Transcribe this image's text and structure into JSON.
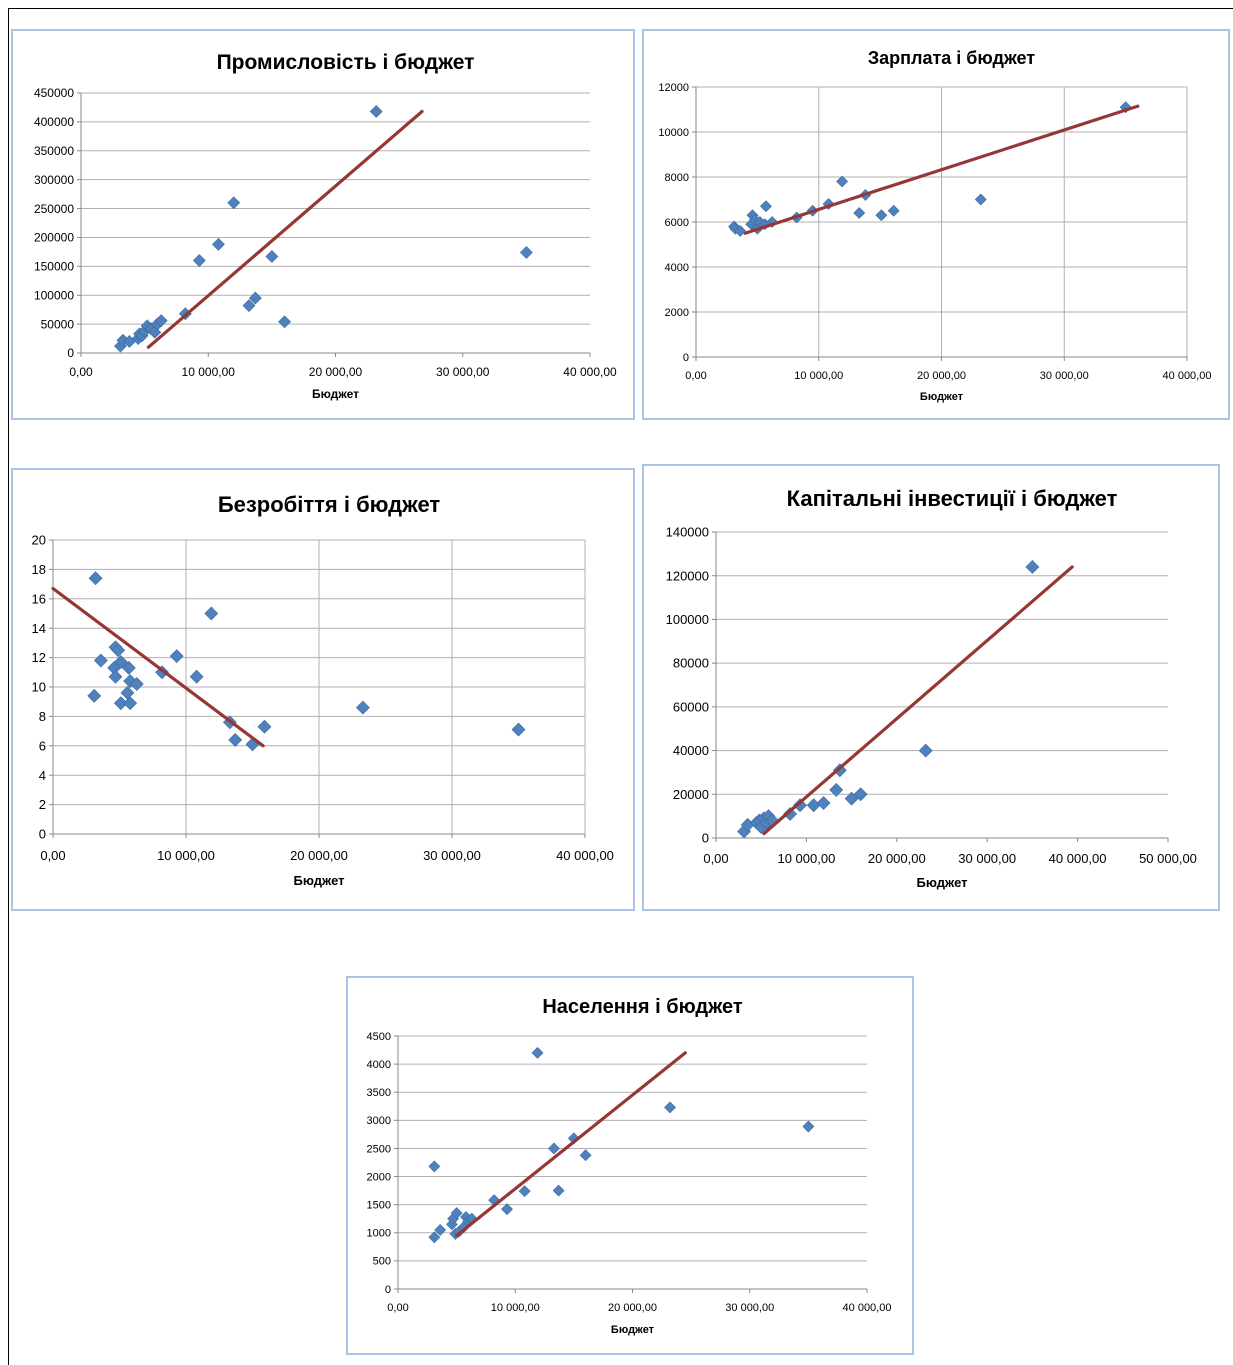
{
  "colors": {
    "point": "#4f81bd",
    "trend": "#953735",
    "grid": "#b0b0b0",
    "border": "#a9c4e6"
  },
  "chart_data": [
    {
      "type": "scatter",
      "title": "Промисловість і бюджет",
      "xlabel": "Бюджет",
      "ylabel": "",
      "xlim": [
        0,
        40000
      ],
      "ylim": [
        0,
        450000
      ],
      "x_ticks": [
        0,
        10000,
        20000,
        30000,
        40000
      ],
      "x_tick_labels": [
        "0,00",
        "10 000,00",
        "20 000,00",
        "30 000,00",
        "40 000,00"
      ],
      "y_ticks": [
        0,
        50000,
        100000,
        150000,
        200000,
        250000,
        300000,
        350000,
        400000,
        450000
      ],
      "y_tick_labels": [
        "0",
        "50000",
        "100000",
        "150000",
        "200000",
        "250000",
        "300000",
        "350000",
        "400000",
        "450000"
      ],
      "grid": {
        "horizontal": true,
        "vertical": false
      },
      "legend": "none",
      "points": [
        [
          3100,
          12000
        ],
        [
          3300,
          22000
        ],
        [
          3800,
          20000
        ],
        [
          4500,
          25000
        ],
        [
          4600,
          33000
        ],
        [
          4800,
          30000
        ],
        [
          5000,
          38000
        ],
        [
          5200,
          47000
        ],
        [
          5500,
          42000
        ],
        [
          5800,
          36000
        ],
        [
          6000,
          50000
        ],
        [
          6300,
          56000
        ],
        [
          8200,
          68000
        ],
        [
          9300,
          160000
        ],
        [
          10800,
          188000
        ],
        [
          12000,
          260000
        ],
        [
          13200,
          82000
        ],
        [
          13700,
          95000
        ],
        [
          15000,
          167000
        ],
        [
          16000,
          54000
        ],
        [
          23200,
          418000
        ],
        [
          35000,
          174000
        ]
      ],
      "trendline": [
        [
          5300,
          10000
        ],
        [
          26800,
          418000
        ]
      ]
    },
    {
      "type": "scatter",
      "title": "Зарплата і бюджет",
      "xlabel": "Бюджет",
      "ylabel": "",
      "xlim": [
        0,
        40000
      ],
      "ylim": [
        0,
        12000
      ],
      "x_ticks": [
        0,
        10000,
        20000,
        30000,
        40000
      ],
      "x_tick_labels": [
        "0,00",
        "10 000,00",
        "20 000,00",
        "30 000,00",
        "40 000,00"
      ],
      "y_ticks": [
        0,
        2000,
        4000,
        6000,
        8000,
        10000,
        12000
      ],
      "y_tick_labels": [
        "0",
        "2000",
        "4000",
        "6000",
        "8000",
        "10000",
        "12000"
      ],
      "grid": {
        "horizontal": true,
        "vertical": true
      },
      "legend": "none",
      "points": [
        [
          3100,
          5800
        ],
        [
          3200,
          5700
        ],
        [
          3600,
          5600
        ],
        [
          4500,
          5900
        ],
        [
          4600,
          6300
        ],
        [
          4800,
          6100
        ],
        [
          5000,
          5700
        ],
        [
          5200,
          6000
        ],
        [
          5600,
          5900
        ],
        [
          5700,
          6700
        ],
        [
          6200,
          6000
        ],
        [
          8200,
          6200
        ],
        [
          9500,
          6500
        ],
        [
          10800,
          6800
        ],
        [
          11900,
          7800
        ],
        [
          13300,
          6400
        ],
        [
          13800,
          7200
        ],
        [
          15100,
          6300
        ],
        [
          16100,
          6500
        ],
        [
          23200,
          7000
        ],
        [
          35000,
          11100
        ]
      ],
      "trendline": [
        [
          4000,
          5500
        ],
        [
          36000,
          11150
        ]
      ]
    },
    {
      "type": "scatter",
      "title": "Безробіття і бюджет",
      "xlabel": "Бюджет",
      "ylabel": "",
      "xlim": [
        0,
        40000
      ],
      "ylim": [
        0,
        20
      ],
      "x_ticks": [
        0,
        10000,
        20000,
        30000,
        40000
      ],
      "x_tick_labels": [
        "0,00",
        "10 000,00",
        "20 000,00",
        "30 000,00",
        "40 000,00"
      ],
      "y_ticks": [
        0,
        2,
        4,
        6,
        8,
        10,
        12,
        14,
        16,
        18,
        20
      ],
      "y_tick_labels": [
        "0",
        "2",
        "4",
        "6",
        "8",
        "10",
        "12",
        "14",
        "16",
        "18",
        "20"
      ],
      "grid": {
        "horizontal": true,
        "vertical": true
      },
      "legend": "none",
      "points": [
        [
          3100,
          9.4
        ],
        [
          3200,
          17.4
        ],
        [
          3600,
          11.8
        ],
        [
          4600,
          11.3
        ],
        [
          4700,
          10.7
        ],
        [
          4700,
          12.7
        ],
        [
          4900,
          12.5
        ],
        [
          5100,
          11.7
        ],
        [
          5100,
          8.9
        ],
        [
          5600,
          9.6
        ],
        [
          5700,
          11.3
        ],
        [
          5800,
          10.4
        ],
        [
          5800,
          8.9
        ],
        [
          6300,
          10.2
        ],
        [
          8200,
          11.0
        ],
        [
          9300,
          12.1
        ],
        [
          10800,
          10.7
        ],
        [
          11900,
          15.0
        ],
        [
          13300,
          7.6
        ],
        [
          13700,
          6.4
        ],
        [
          15000,
          6.1
        ],
        [
          15900,
          7.3
        ],
        [
          23300,
          8.6
        ],
        [
          35000,
          7.1
        ]
      ],
      "trendline": [
        [
          0,
          16.7
        ],
        [
          15800,
          6.0
        ]
      ]
    },
    {
      "type": "scatter",
      "title": "Капітальні інвестиції і бюджет",
      "xlabel": "Бюджет",
      "ylabel": "",
      "xlim": [
        0,
        50000
      ],
      "ylim": [
        0,
        140000
      ],
      "x_ticks": [
        0,
        10000,
        20000,
        30000,
        40000,
        50000
      ],
      "x_tick_labels": [
        "0,00",
        "10 000,00",
        "20 000,00",
        "30 000,00",
        "40 000,00",
        "50 000,00"
      ],
      "y_ticks": [
        0,
        20000,
        40000,
        60000,
        80000,
        100000,
        120000,
        140000
      ],
      "y_tick_labels": [
        "0",
        "20000",
        "40000",
        "60000",
        "80000",
        "100000",
        "120000",
        "140000"
      ],
      "grid": {
        "horizontal": true,
        "vertical": false
      },
      "legend": "none",
      "points": [
        [
          3100,
          3000
        ],
        [
          3500,
          6000
        ],
        [
          4500,
          7000
        ],
        [
          4800,
          8000
        ],
        [
          5000,
          5000
        ],
        [
          5300,
          9000
        ],
        [
          5600,
          7000
        ],
        [
          5800,
          10000
        ],
        [
          6200,
          8000
        ],
        [
          8200,
          11000
        ],
        [
          9300,
          15000
        ],
        [
          10800,
          15000
        ],
        [
          11900,
          16000
        ],
        [
          13300,
          22000
        ],
        [
          13700,
          31000
        ],
        [
          15000,
          18000
        ],
        [
          16000,
          20000
        ],
        [
          23200,
          40000
        ],
        [
          35000,
          124000
        ]
      ],
      "trendline": [
        [
          5300,
          2000
        ],
        [
          39400,
          124000
        ]
      ]
    },
    {
      "type": "scatter",
      "title": "Населення і бюджет",
      "xlabel": "Бюджет",
      "ylabel": "",
      "xlim": [
        0,
        40000
      ],
      "ylim": [
        0,
        4500
      ],
      "x_ticks": [
        0,
        10000,
        20000,
        30000,
        40000
      ],
      "x_tick_labels": [
        "0,00",
        "10 000,00",
        "20 000,00",
        "30 000,00",
        "40 000,00"
      ],
      "y_ticks": [
        0,
        500,
        1000,
        1500,
        2000,
        2500,
        3000,
        3500,
        4000,
        4500
      ],
      "y_tick_labels": [
        "0",
        "500",
        "1000",
        "1500",
        "2000",
        "2500",
        "3000",
        "3500",
        "4000",
        "4500"
      ],
      "grid": {
        "horizontal": true,
        "vertical": false
      },
      "legend": "none",
      "points": [
        [
          3100,
          920
        ],
        [
          3100,
          2180
        ],
        [
          3600,
          1050
        ],
        [
          4600,
          1150
        ],
        [
          4700,
          1250
        ],
        [
          4900,
          980
        ],
        [
          5000,
          1350
        ],
        [
          5200,
          1020
        ],
        [
          5600,
          1100
        ],
        [
          5800,
          1280
        ],
        [
          6000,
          1200
        ],
        [
          6300,
          1250
        ],
        [
          8200,
          1580
        ],
        [
          9300,
          1420
        ],
        [
          10800,
          1740
        ],
        [
          11900,
          4200
        ],
        [
          13300,
          2500
        ],
        [
          13700,
          1750
        ],
        [
          15000,
          2680
        ],
        [
          16000,
          2380
        ],
        [
          23200,
          3230
        ],
        [
          35000,
          2890
        ]
      ],
      "trendline": [
        [
          5000,
          950
        ],
        [
          24500,
          4200
        ]
      ]
    }
  ]
}
